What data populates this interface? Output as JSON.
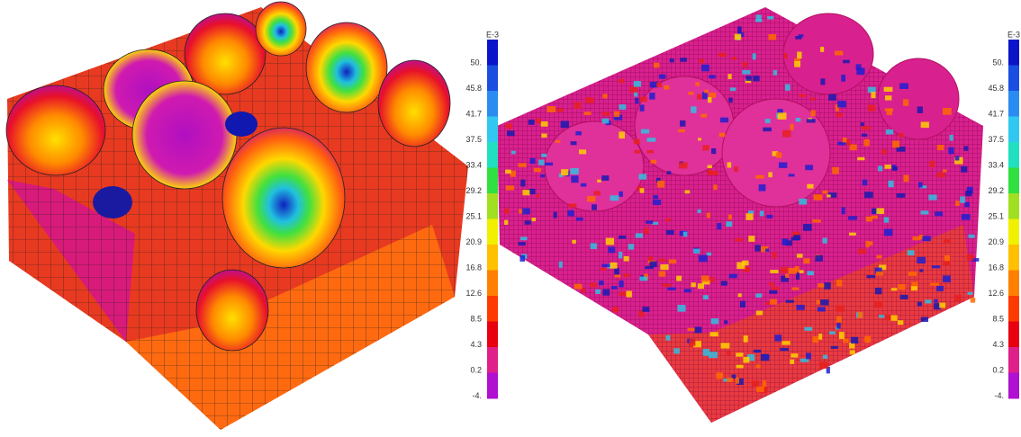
{
  "panels": [
    {
      "legend": {
        "exponent": "E-3",
        "labels": [
          "50.",
          "45.8",
          "41.7",
          "37.5",
          "33.4",
          "29.2",
          "25.1",
          "20.9",
          "16.8",
          "12.6",
          "8.5",
          "4.3",
          "0.2",
          "-4."
        ]
      }
    },
    {
      "legend": {
        "exponent": "E-3",
        "labels": [
          "50.",
          "45.8",
          "41.7",
          "37.5",
          "33.4",
          "29.2",
          "25.1",
          "20.9",
          "16.8",
          "12.6",
          "8.5",
          "4.3",
          "0.2",
          "-4."
        ]
      }
    }
  ]
}
